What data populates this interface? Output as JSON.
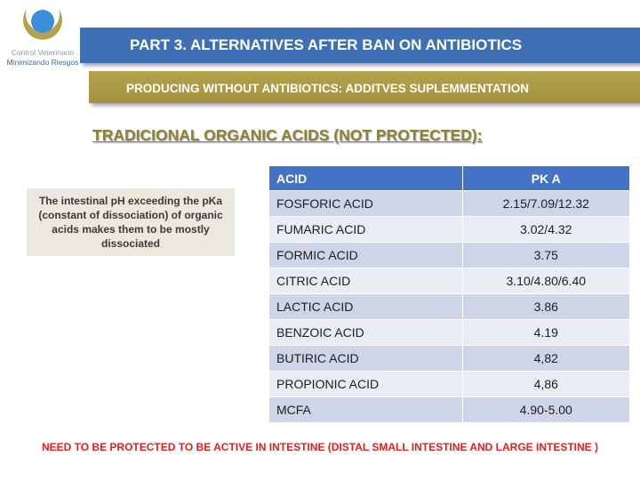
{
  "logo": {
    "line1": "Control Veterinario",
    "line2": "Minimizando Riesgos",
    "colors": {
      "ring": "#b5a24f",
      "center": "#3b8ed8"
    }
  },
  "header": {
    "title": "PART 3. ALTERNATIVES AFTER BAN ON ANTIBIOTICS",
    "subtitle": "PRODUCING WITHOUT ANTIBIOTICS: ADDITVES SUPLEMMENTATION"
  },
  "section_title": "TRADICIONAL ORGANIC ACIDS (NOT PROTECTED):",
  "note": "The intestinal pH exceeding the pKa (constant of dissociation) of organic acids makes them to be mostly dissociated",
  "table": {
    "headers": [
      "ACID",
      "PK A"
    ],
    "rows": [
      [
        "FOSFORIC ACID",
        "2.15/7.09/12.32"
      ],
      [
        "FUMARIC ACID",
        "3.02/4.32"
      ],
      [
        "FORMIC ACID",
        "3.75"
      ],
      [
        "CITRIC ACID",
        "3.10/4.80/6.40"
      ],
      [
        "LACTIC ACID",
        "3.86"
      ],
      [
        "BENZOIC ACID",
        "4.19"
      ],
      [
        "BUTIRIC ACID",
        "4,82"
      ],
      [
        "PROPIONIC ACID",
        "4,86"
      ],
      [
        "MCFA",
        "4.90-5.00"
      ]
    ]
  },
  "footer": "NEED TO BE PROTECTED TO BE ACTIVE IN INTESTINE (DISTAL SMALL INTESTINE AND LARGE INTESTINE )"
}
